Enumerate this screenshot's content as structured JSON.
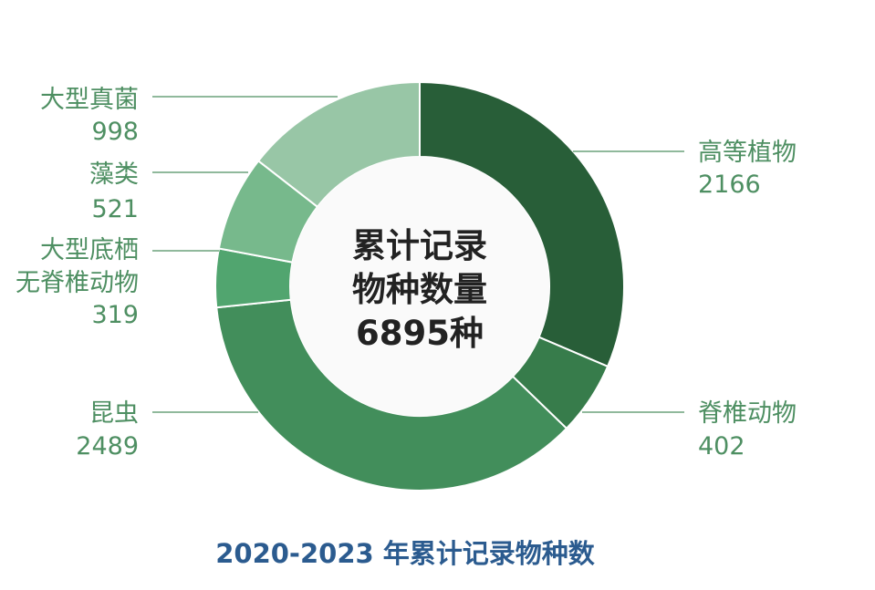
{
  "chart_data": {
    "type": "pie",
    "title": "2020-2023 年累计记录物种数",
    "center_label": [
      "累计记录",
      "物种数量",
      "6895种"
    ],
    "total": 6895,
    "slices": [
      {
        "name": "高等植物",
        "value": 2166,
        "color": "#285e38"
      },
      {
        "name": "脊椎动物",
        "value": 402,
        "color": "#377c4b"
      },
      {
        "name": "昆虫",
        "value": 2489,
        "color": "#428e5b"
      },
      {
        "name": "大型底栖无脊椎动物",
        "label_lines": [
          "大型底栖",
          "无脊椎动物"
        ],
        "value": 319,
        "color": "#51a56f"
      },
      {
        "name": "藻类",
        "value": 521,
        "color": "#77b98c"
      },
      {
        "name": "大型真菌",
        "value": 998,
        "color": "#98c6a6"
      }
    ],
    "label_color": "#4e8f62",
    "title_color": "#2b5b8f",
    "center_fill": "#fafafa"
  }
}
